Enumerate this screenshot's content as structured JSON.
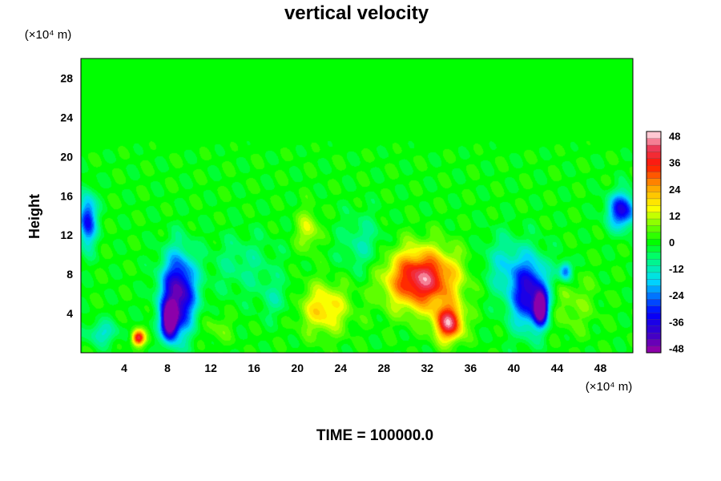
{
  "chart_data": {
    "type": "heatmap",
    "title": "vertical velocity",
    "xlabel": "",
    "ylabel": "Height",
    "x_unit_label": "(×10⁴ m)",
    "y_unit_label": "(×10⁴ m)",
    "xlim": [
      0,
      51
    ],
    "ylim": [
      0,
      30
    ],
    "x_ticks": [
      4,
      8,
      12,
      16,
      20,
      24,
      28,
      32,
      36,
      40,
      44,
      48
    ],
    "y_ticks": [
      4,
      8,
      12,
      16,
      20,
      24,
      28
    ],
    "colorbar": {
      "range": [
        -50,
        50
      ],
      "ticks": [
        48,
        36,
        24,
        12,
        0,
        -12,
        -24,
        -36,
        -48
      ],
      "colormap": "rainbow (purple → blue → cyan → green → yellow → orange → red → pink)"
    },
    "background_value": 0,
    "features": [
      {
        "x": 31.5,
        "y": 7.5,
        "sx": 3.2,
        "sy": 3.0,
        "value": 44
      },
      {
        "x": 34.0,
        "y": 3.0,
        "sx": 1.3,
        "sy": 1.8,
        "value": 42
      },
      {
        "x": 22.5,
        "y": 4.5,
        "sx": 2.2,
        "sy": 2.5,
        "value": 20
      },
      {
        "x": 21.0,
        "y": 12.5,
        "sx": 1.0,
        "sy": 2.0,
        "value": 14
      },
      {
        "x": 5.3,
        "y": 1.5,
        "sx": 0.6,
        "sy": 0.8,
        "value": 40
      },
      {
        "x": 9.0,
        "y": 6.0,
        "sx": 1.6,
        "sy": 4.0,
        "value": -46
      },
      {
        "x": 8.2,
        "y": 3.2,
        "sx": 0.7,
        "sy": 1.8,
        "value": -50
      },
      {
        "x": 41.5,
        "y": 6.0,
        "sx": 1.8,
        "sy": 3.5,
        "value": -40
      },
      {
        "x": 42.5,
        "y": 4.5,
        "sx": 0.6,
        "sy": 1.6,
        "value": -48
      },
      {
        "x": 50.0,
        "y": 14.5,
        "sx": 1.3,
        "sy": 1.8,
        "value": -36
      },
      {
        "x": 0.6,
        "y": 13.5,
        "sx": 0.8,
        "sy": 2.6,
        "value": -34
      },
      {
        "x": 44.8,
        "y": 8.3,
        "sx": 0.6,
        "sy": 1.0,
        "value": -28
      },
      {
        "x": 15.0,
        "y": 9.0,
        "sx": 3.0,
        "sy": 3.0,
        "value": -8
      },
      {
        "x": 26.0,
        "y": 11.0,
        "sx": 2.0,
        "sy": 3.0,
        "value": -10
      },
      {
        "x": 39.0,
        "y": 9.0,
        "sx": 2.0,
        "sy": 3.0,
        "value": -12
      },
      {
        "x": 2.0,
        "y": 2.0,
        "sx": 1.5,
        "sy": 1.2,
        "value": -14
      },
      {
        "x": 12.5,
        "y": 2.5,
        "sx": 1.5,
        "sy": 1.5,
        "value": 6
      },
      {
        "x": 45.0,
        "y": 5.0,
        "sx": 2.5,
        "sy": 3.0,
        "value": 8
      },
      {
        "x": 18.0,
        "y": 5.5,
        "sx": 1.5,
        "sy": 2.0,
        "value": -8
      }
    ]
  },
  "footer": {
    "time_label": "TIME = 100000.0"
  }
}
